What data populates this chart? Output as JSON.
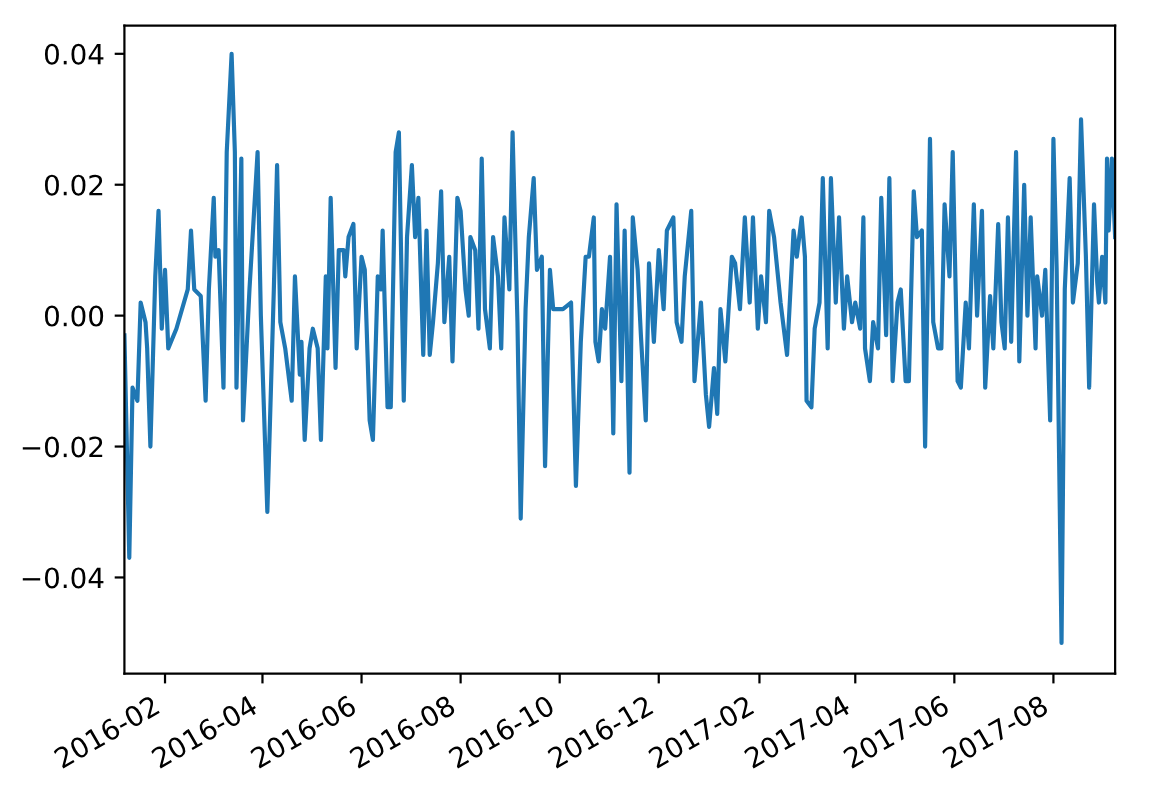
{
  "chart_data": {
    "type": "line",
    "xlim": [
      "2016-01-07",
      "2017-09-08"
    ],
    "ylim": [
      -0.0547,
      0.0443
    ],
    "xticks": [
      {
        "value": "2016-02-01",
        "label": "2016-02"
      },
      {
        "value": "2016-04-01",
        "label": "2016-04"
      },
      {
        "value": "2016-06-01",
        "label": "2016-06"
      },
      {
        "value": "2016-08-01",
        "label": "2016-08"
      },
      {
        "value": "2016-10-01",
        "label": "2016-10"
      },
      {
        "value": "2016-12-01",
        "label": "2016-12"
      },
      {
        "value": "2017-02-01",
        "label": "2017-02"
      },
      {
        "value": "2017-04-01",
        "label": "2017-04"
      },
      {
        "value": "2017-06-01",
        "label": "2017-06"
      },
      {
        "value": "2017-08-01",
        "label": "2017-08"
      }
    ],
    "yticks": [
      {
        "value": -0.04,
        "label": "−0.04"
      },
      {
        "value": -0.02,
        "label": "−0.02"
      },
      {
        "value": 0,
        "label": "0.00"
      },
      {
        "value": 0.02,
        "label": "0.02"
      },
      {
        "value": 0.04,
        "label": "0.04"
      }
    ],
    "grid": false,
    "legend": false,
    "marker": "none",
    "line_style": "solid",
    "series": [
      {
        "color": "#1f77b4",
        "x": [
          "2016-01-07",
          "2016-01-10",
          "2016-01-12",
          "2016-01-15",
          "2016-01-17",
          "2016-01-20",
          "2016-01-21",
          "2016-01-23",
          "2016-01-26",
          "2016-01-28",
          "2016-01-30",
          "2016-02-01",
          "2016-02-03",
          "2016-02-08",
          "2016-02-15",
          "2016-02-17",
          "2016-02-19",
          "2016-02-23",
          "2016-02-26",
          "2016-02-28",
          "2016-03-02",
          "2016-03-03",
          "2016-03-05",
          "2016-03-08",
          "2016-03-10",
          "2016-03-13",
          "2016-03-15",
          "2016-03-16",
          "2016-03-19",
          "2016-03-20",
          "2016-03-24",
          "2016-03-29",
          "2016-03-31",
          "2016-04-04",
          "2016-04-08",
          "2016-04-10",
          "2016-04-12",
          "2016-04-15",
          "2016-04-19",
          "2016-04-21",
          "2016-04-24",
          "2016-04-25",
          "2016-04-27",
          "2016-04-30",
          "2016-05-02",
          "2016-05-05",
          "2016-05-07",
          "2016-05-10",
          "2016-05-11",
          "2016-05-13",
          "2016-05-16",
          "2016-05-18",
          "2016-05-21",
          "2016-05-22",
          "2016-05-24",
          "2016-05-27",
          "2016-05-29",
          "2016-06-01",
          "2016-06-03",
          "2016-06-06",
          "2016-06-08",
          "2016-06-11",
          "2016-06-13",
          "2016-06-14",
          "2016-06-17",
          "2016-06-19",
          "2016-06-22",
          "2016-06-24",
          "2016-06-27",
          "2016-06-29",
          "2016-07-02",
          "2016-07-04",
          "2016-07-06",
          "2016-07-09",
          "2016-07-11",
          "2016-07-13",
          "2016-07-15",
          "2016-07-18",
          "2016-07-20",
          "2016-07-22",
          "2016-07-25",
          "2016-07-27",
          "2016-07-30",
          "2016-08-01",
          "2016-08-04",
          "2016-08-06",
          "2016-08-07",
          "2016-08-10",
          "2016-08-12",
          "2016-08-14",
          "2016-08-16",
          "2016-08-19",
          "2016-08-21",
          "2016-08-24",
          "2016-08-26",
          "2016-08-28",
          "2016-08-31",
          "2016-09-02",
          "2016-09-05",
          "2016-09-07",
          "2016-09-10",
          "2016-09-12",
          "2016-09-15",
          "2016-09-17",
          "2016-09-20",
          "2016-09-22",
          "2016-09-25",
          "2016-09-27",
          "2016-10-03",
          "2016-10-08",
          "2016-10-11",
          "2016-10-14",
          "2016-10-17",
          "2016-10-19",
          "2016-10-22",
          "2016-10-23",
          "2016-10-25",
          "2016-10-27",
          "2016-10-29",
          "2016-11-01",
          "2016-11-03",
          "2016-11-05",
          "2016-11-08",
          "2016-11-10",
          "2016-11-13",
          "2016-11-15",
          "2016-11-18",
          "2016-11-20",
          "2016-11-23",
          "2016-11-25",
          "2016-11-28",
          "2016-12-01",
          "2016-12-04",
          "2016-12-06",
          "2016-12-10",
          "2016-12-12",
          "2016-12-15",
          "2016-12-17",
          "2016-12-21",
          "2016-12-23",
          "2016-12-27",
          "2016-12-30",
          "2017-01-01",
          "2017-01-04",
          "2017-01-06",
          "2017-01-08",
          "2017-01-11",
          "2017-01-15",
          "2017-01-17",
          "2017-01-20",
          "2017-01-23",
          "2017-01-26",
          "2017-01-28",
          "2017-01-31",
          "2017-02-02",
          "2017-02-05",
          "2017-02-07",
          "2017-02-10",
          "2017-02-14",
          "2017-02-18",
          "2017-02-22",
          "2017-02-24",
          "2017-02-27",
          "2017-03-01",
          "2017-03-02",
          "2017-03-05",
          "2017-03-07",
          "2017-03-10",
          "2017-03-12",
          "2017-03-15",
          "2017-03-17",
          "2017-03-20",
          "2017-03-22",
          "2017-03-25",
          "2017-03-27",
          "2017-03-30",
          "2017-04-01",
          "2017-04-04",
          "2017-04-06",
          "2017-04-07",
          "2017-04-10",
          "2017-04-12",
          "2017-04-15",
          "2017-04-17",
          "2017-04-20",
          "2017-04-22",
          "2017-04-24",
          "2017-04-27",
          "2017-04-29",
          "2017-05-02",
          "2017-05-04",
          "2017-05-07",
          "2017-05-09",
          "2017-05-12",
          "2017-05-14",
          "2017-05-17",
          "2017-05-19",
          "2017-05-22",
          "2017-05-24",
          "2017-05-26",
          "2017-05-29",
          "2017-05-31",
          "2017-06-03",
          "2017-06-05",
          "2017-06-08",
          "2017-06-10",
          "2017-06-13",
          "2017-06-15",
          "2017-06-18",
          "2017-06-20",
          "2017-06-23",
          "2017-06-25",
          "2017-06-28",
          "2017-06-30",
          "2017-07-02",
          "2017-07-04",
          "2017-07-06",
          "2017-07-09",
          "2017-07-11",
          "2017-07-14",
          "2017-07-16",
          "2017-07-18",
          "2017-07-21",
          "2017-07-22",
          "2017-07-25",
          "2017-07-27",
          "2017-07-30",
          "2017-08-01",
          "2017-08-03",
          "2017-08-06",
          "2017-08-08",
          "2017-08-11",
          "2017-08-13",
          "2017-08-16",
          "2017-08-18",
          "2017-08-21",
          "2017-08-23",
          "2017-08-26",
          "2017-08-28",
          "2017-08-29",
          "2017-08-31",
          "2017-09-02",
          "2017-09-03",
          "2017-09-04",
          "2017-09-06",
          "2017-09-08"
        ],
        "values": [
          -0.003,
          -0.037,
          -0.011,
          -0.013,
          0.002,
          -0.001,
          -0.005,
          -0.02,
          0.006,
          0.016,
          -0.002,
          0.007,
          -0.005,
          -0.002,
          0.004,
          0.013,
          0.004,
          0.003,
          -0.013,
          0.004,
          0.018,
          0.009,
          0.01,
          -0.011,
          0.025,
          0.04,
          0.025,
          -0.011,
          0.024,
          -0.016,
          0.004,
          0.025,
          0.0,
          -0.03,
          0.004,
          0.023,
          -0.001,
          -0.005,
          -0.013,
          0.006,
          -0.009,
          -0.004,
          -0.019,
          -0.005,
          -0.002,
          -0.005,
          -0.019,
          0.006,
          -0.005,
          0.018,
          -0.008,
          0.01,
          0.01,
          0.006,
          0.012,
          0.014,
          -0.005,
          0.009,
          0.007,
          -0.016,
          -0.019,
          0.006,
          0.004,
          0.013,
          -0.014,
          -0.014,
          0.025,
          0.028,
          -0.013,
          0.012,
          0.023,
          0.012,
          0.018,
          -0.006,
          0.013,
          -0.006,
          -0.001,
          0.008,
          0.019,
          -0.001,
          0.009,
          -0.007,
          0.018,
          0.016,
          0.004,
          0.0,
          0.012,
          0.01,
          -0.002,
          0.024,
          0.001,
          -0.005,
          0.012,
          0.006,
          -0.005,
          0.015,
          0.004,
          0.028,
          -0.001,
          -0.031,
          0.001,
          0.012,
          0.021,
          0.007,
          0.009,
          -0.023,
          0.007,
          0.001,
          0.001,
          0.002,
          -0.026,
          -0.004,
          0.009,
          0.009,
          0.015,
          -0.004,
          -0.007,
          0.001,
          -0.002,
          0.009,
          -0.018,
          0.017,
          -0.01,
          0.013,
          -0.024,
          0.015,
          0.007,
          -0.003,
          -0.016,
          0.008,
          -0.004,
          0.01,
          0.001,
          0.013,
          0.015,
          -0.001,
          -0.004,
          0.006,
          0.016,
          -0.01,
          0.002,
          -0.012,
          -0.017,
          -0.008,
          -0.015,
          0.001,
          -0.007,
          0.009,
          0.008,
          0.001,
          0.015,
          0.002,
          0.015,
          -0.002,
          0.006,
          -0.001,
          0.016,
          0.012,
          0.002,
          -0.006,
          0.013,
          0.009,
          0.015,
          0.009,
          -0.013,
          -0.014,
          -0.002,
          0.002,
          0.021,
          -0.005,
          0.021,
          0.002,
          0.015,
          -0.002,
          0.006,
          -0.001,
          0.002,
          -0.002,
          0.015,
          -0.005,
          -0.01,
          -0.001,
          -0.005,
          0.018,
          -0.003,
          0.021,
          -0.01,
          0.002,
          0.004,
          -0.01,
          -0.01,
          0.019,
          0.012,
          0.013,
          -0.02,
          0.027,
          -0.001,
          -0.005,
          -0.005,
          0.017,
          0.006,
          0.025,
          -0.01,
          -0.011,
          0.002,
          -0.005,
          0.017,
          0.0,
          0.016,
          -0.011,
          0.003,
          -0.005,
          0.014,
          -0.001,
          -0.005,
          0.015,
          -0.004,
          0.025,
          -0.007,
          0.02,
          0.0,
          0.015,
          -0.005,
          0.006,
          0.0,
          0.007,
          -0.016,
          0.027,
          0.007,
          -0.05,
          0.004,
          0.021,
          0.002,
          0.008,
          0.03,
          0.009,
          -0.011,
          0.017,
          0.005,
          0.002,
          0.009,
          0.002,
          0.024,
          0.013,
          0.024,
          0.012
        ]
      }
    ]
  }
}
